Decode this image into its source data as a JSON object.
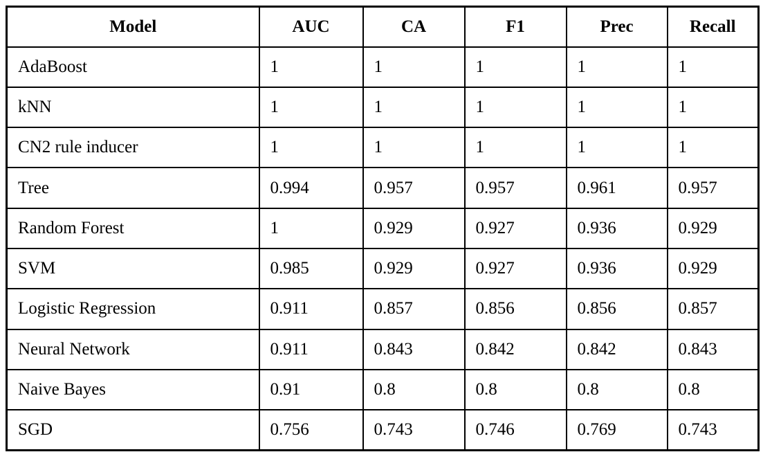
{
  "chart_data": {
    "type": "table",
    "columns": [
      "Model",
      "AUC",
      "CA",
      "F1",
      "Prec",
      "Recall"
    ],
    "rows": [
      [
        "AdaBoost",
        "1",
        "1",
        "1",
        "1",
        "1"
      ],
      [
        "kNN",
        "1",
        "1",
        "1",
        "1",
        "1"
      ],
      [
        "CN2 rule inducer",
        "1",
        "1",
        "1",
        "1",
        "1"
      ],
      [
        "Tree",
        "0.994",
        "0.957",
        "0.957",
        "0.961",
        "0.957"
      ],
      [
        "Random Forest",
        "1",
        "0.929",
        "0.927",
        "0.936",
        "0.929"
      ],
      [
        "SVM",
        "0.985",
        "0.929",
        "0.927",
        "0.936",
        "0.929"
      ],
      [
        "Logistic Regression",
        "0.911",
        "0.857",
        "0.856",
        "0.856",
        "0.857"
      ],
      [
        "Neural Network",
        "0.911",
        "0.843",
        "0.842",
        "0.842",
        "0.843"
      ],
      [
        "Naive Bayes",
        "0.91",
        "0.8",
        "0.8",
        "0.8",
        "0.8"
      ],
      [
        "SGD",
        "0.756",
        "0.743",
        "0.746",
        "0.769",
        "0.743"
      ]
    ],
    "title": "",
    "notes": "Model evaluation scores table; metric columns AUC, CA, F1, Prec, Recall"
  }
}
